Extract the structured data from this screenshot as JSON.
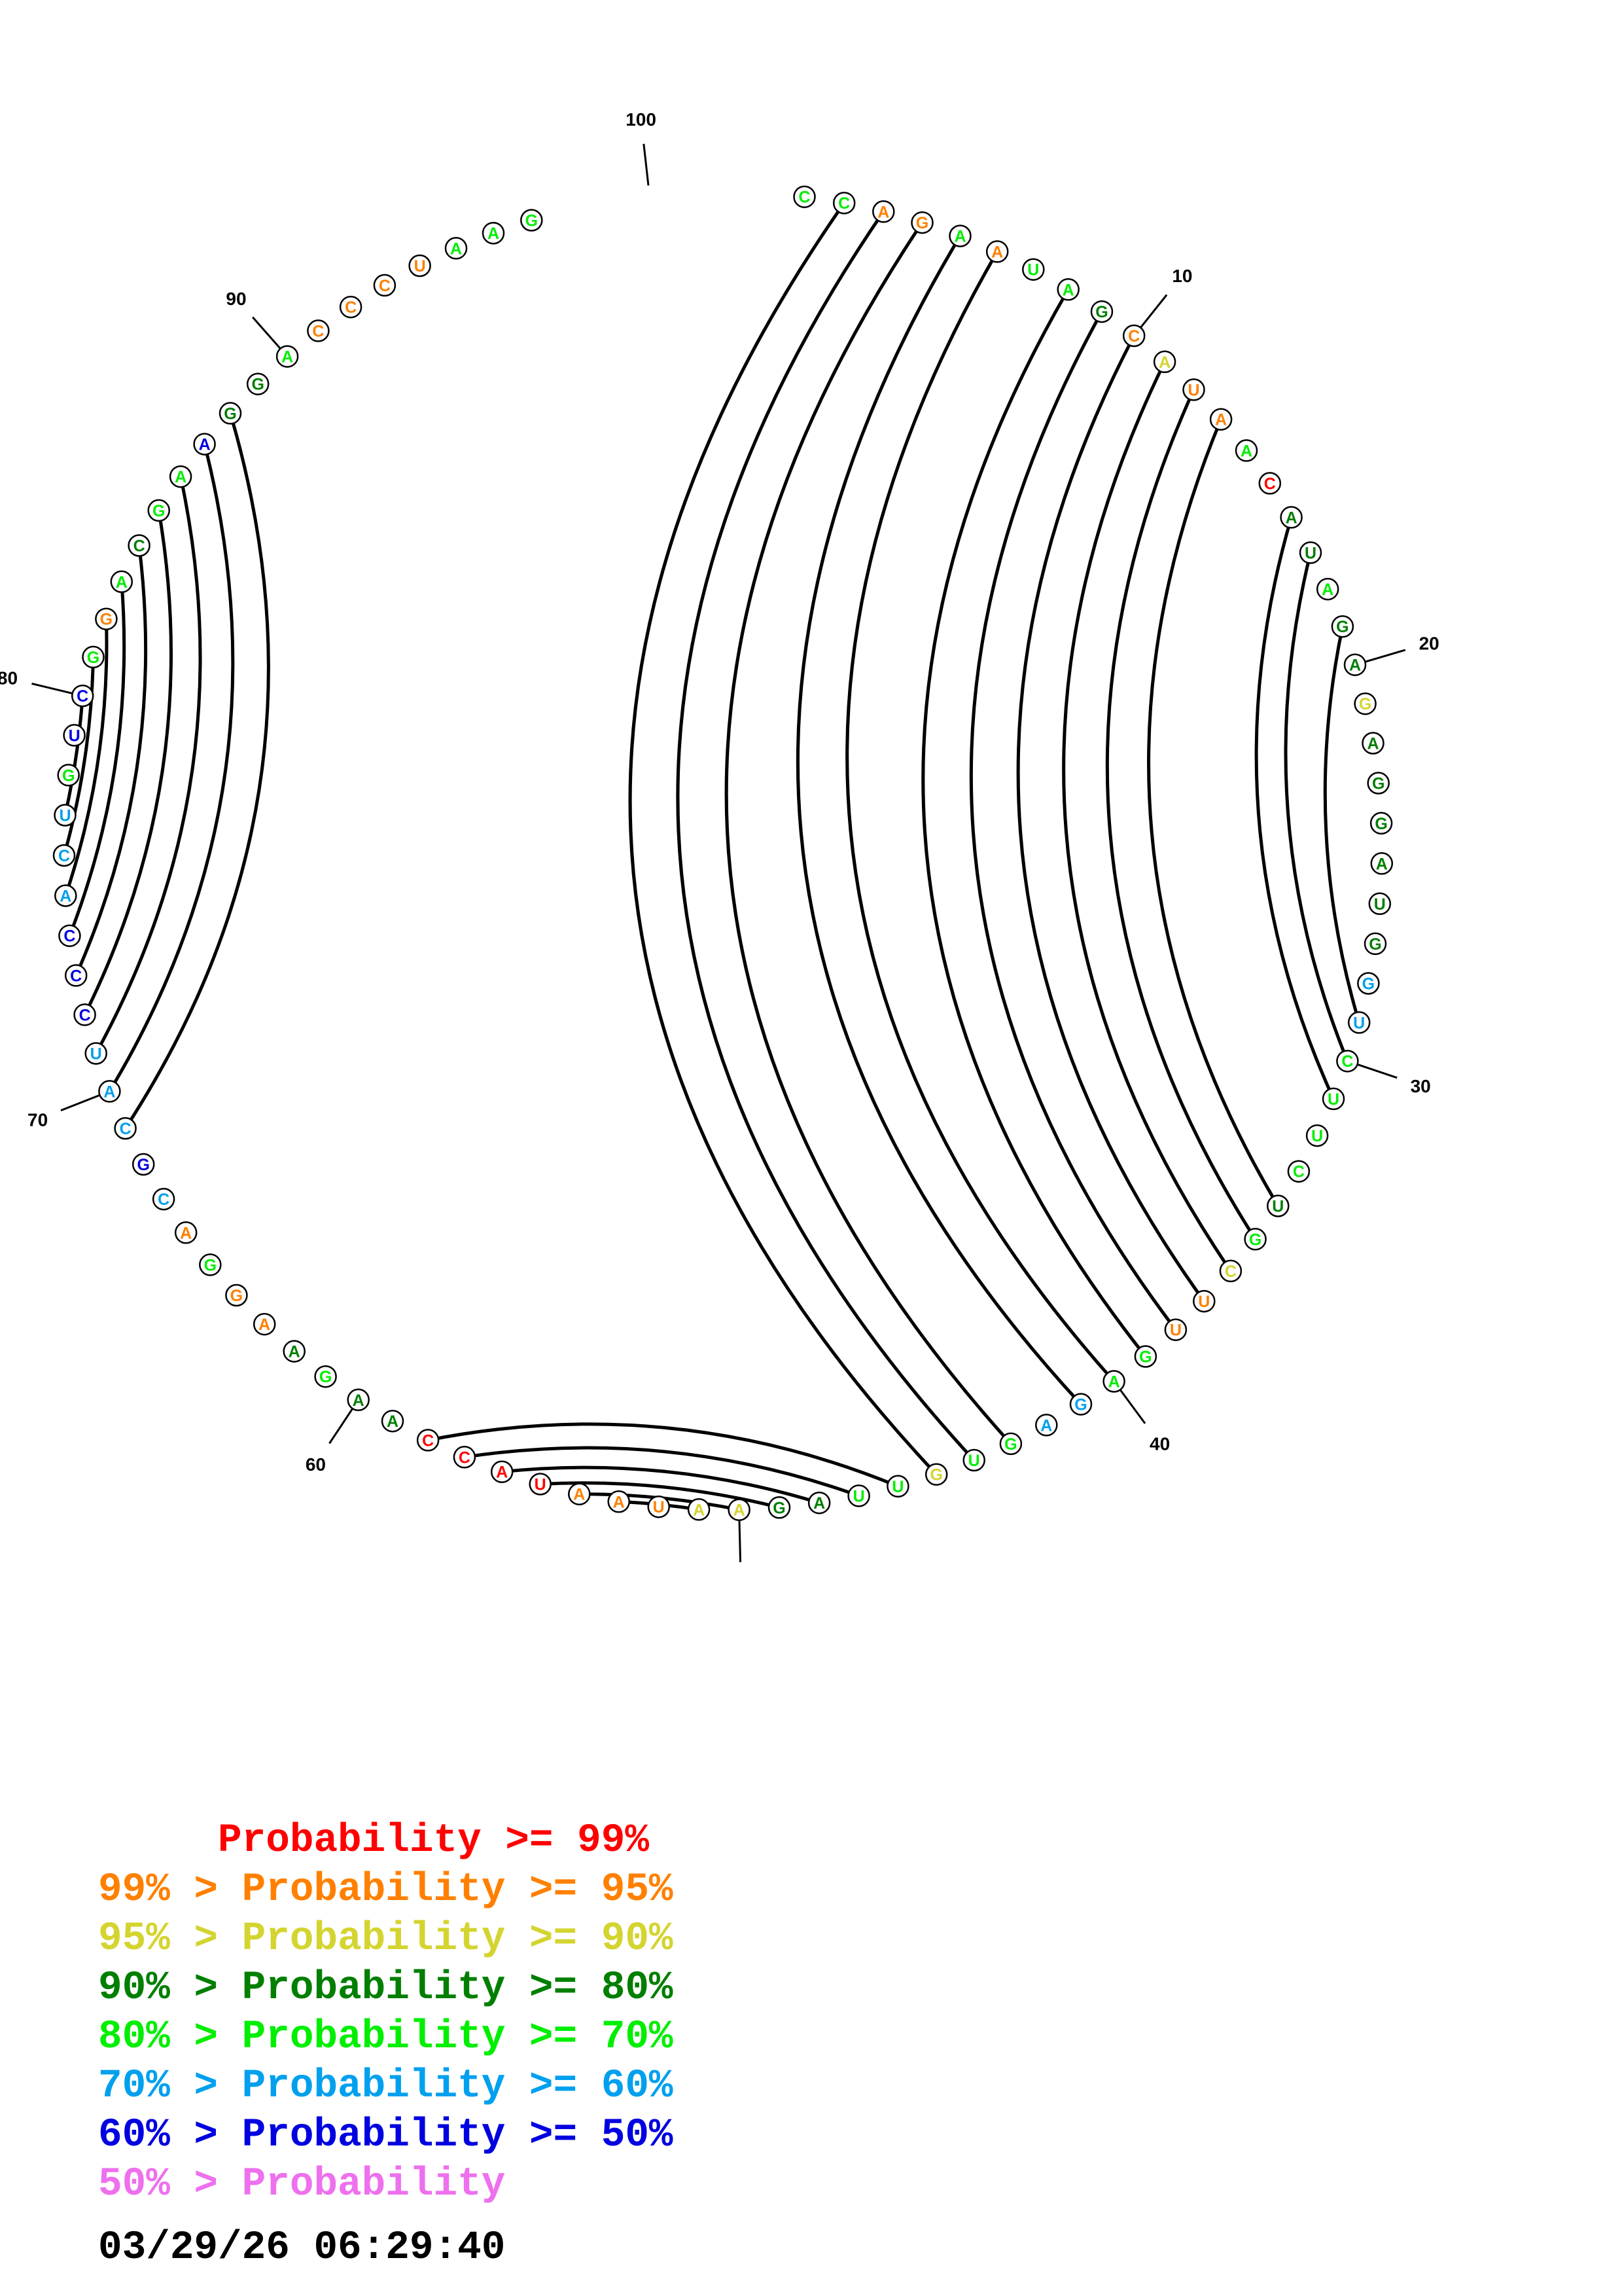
{
  "sequence": "CCAGAAUAGCAUAACAUAGAGAGGAUGGUCUUCUGCUUGAGAGUGUUAGAAUAAUACCAAGAAGGACGCAUCCCACUGUCGGACGAAGGACCCUAAG",
  "probability_colors": {
    "p99": "#ff0000",
    "p95": "#ff8000",
    "p90": "#d4d430",
    "p80": "#007f00",
    "p70": "#00ee00",
    "p60": "#00a0ee",
    "p50": "#0000e0",
    "plow": "#ee70ee"
  },
  "nucleotide_colors": "4411414431211403343323333335544443421144554424433221110000334311415655566655546641434463341111444012",
  "base_pairs": [
    [
      2,
      45
    ],
    [
      3,
      44
    ],
    [
      4,
      43
    ],
    [
      5,
      41
    ],
    [
      6,
      40
    ],
    [
      8,
      39
    ],
    [
      9,
      38
    ],
    [
      10,
      37
    ],
    [
      11,
      36
    ],
    [
      12,
      35
    ],
    [
      13,
      34
    ],
    [
      16,
      31
    ],
    [
      17,
      30
    ],
    [
      19,
      29
    ],
    [
      46,
      58
    ],
    [
      47,
      57
    ],
    [
      48,
      56
    ],
    [
      49,
      55
    ],
    [
      50,
      54
    ],
    [
      51,
      53
    ],
    [
      69,
      88
    ],
    [
      70,
      87
    ],
    [
      71,
      86
    ],
    [
      72,
      85
    ],
    [
      73,
      84
    ],
    [
      74,
      83
    ],
    [
      75,
      82
    ],
    [
      76,
      81
    ],
    [
      77,
      80
    ]
  ],
  "position_labels": [
    "10",
    "20",
    "30",
    "40",
    "50",
    "60",
    "70",
    "80",
    "90",
    "100"
  ],
  "legend": [
    {
      "text": "     Probability >= 99%",
      "color": "#ff0000"
    },
    {
      "text": "99% > Probability >= 95%",
      "color": "#ff8000"
    },
    {
      "text": "95% > Probability >= 90%",
      "color": "#d4d430"
    },
    {
      "text": "90% > Probability >= 80%",
      "color": "#007f00"
    },
    {
      "text": "80% > Probability >= 70%",
      "color": "#00ee00"
    },
    {
      "text": "70% > Probability >= 60%",
      "color": "#00a0ee"
    },
    {
      "text": "60% > Probability >= 50%",
      "color": "#0000e0"
    },
    {
      "text": "50% > Probability",
      "color": "#ee70ee"
    }
  ],
  "timestamp": "03/29/26 06:29:40"
}
